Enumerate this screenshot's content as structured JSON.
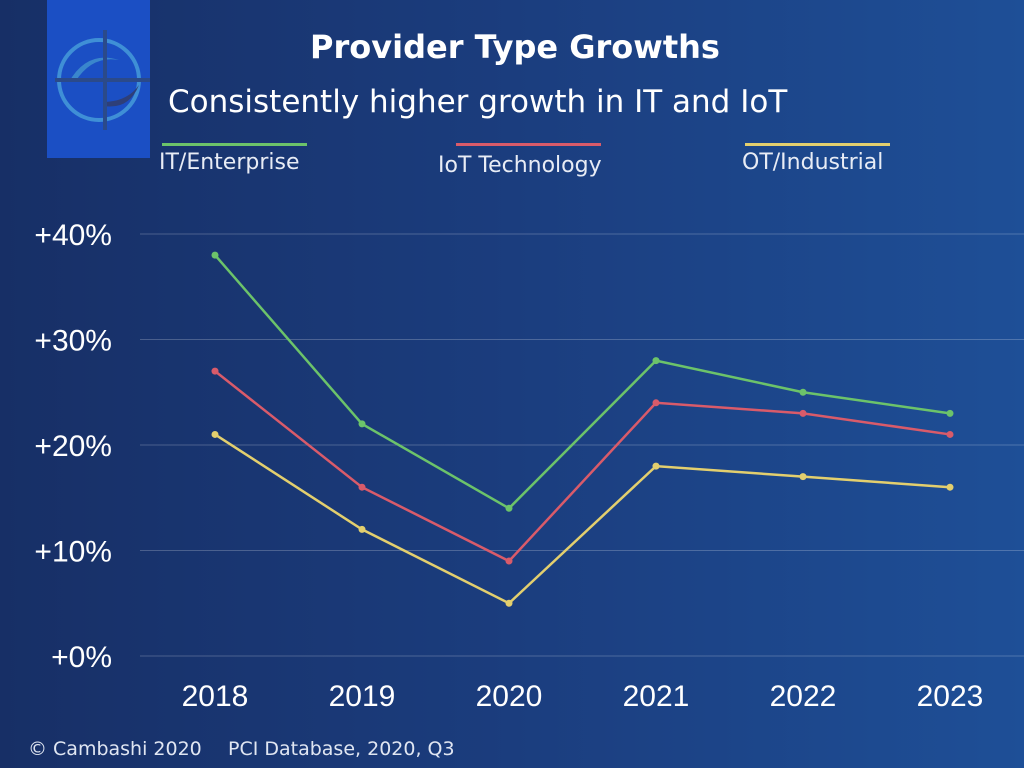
{
  "chart_data": {
    "type": "line",
    "title": "Provider Type Growths",
    "subtitle": "Consistently higher growth in IT and IoT",
    "categories": [
      "2018",
      "2019",
      "2020",
      "2021",
      "2022",
      "2023"
    ],
    "y_tick_labels": [
      "+0%",
      "+10%",
      "+20%",
      "+30%",
      "+40%"
    ],
    "y_ticks": [
      0,
      10,
      20,
      30,
      40
    ],
    "ylim": [
      0,
      40
    ],
    "grid": true,
    "legend_placement": "top",
    "series": [
      {
        "name": "IT/Enterprise",
        "color": "#6cc36a",
        "values": [
          38,
          22,
          14,
          28,
          25,
          23
        ]
      },
      {
        "name": "IoT Technology",
        "color": "#d95b6a",
        "values": [
          27,
          16,
          9,
          24,
          23,
          21
        ]
      },
      {
        "name": "OT/Industrial",
        "color": "#e3cf6e",
        "values": [
          21,
          12,
          5,
          18,
          17,
          16
        ]
      }
    ]
  },
  "footer": {
    "copyright": "© Cambashi 2020",
    "source": "PCI Database, 2020, Q3"
  },
  "logo": {
    "icon": "cambashi-crosshair-logo"
  }
}
